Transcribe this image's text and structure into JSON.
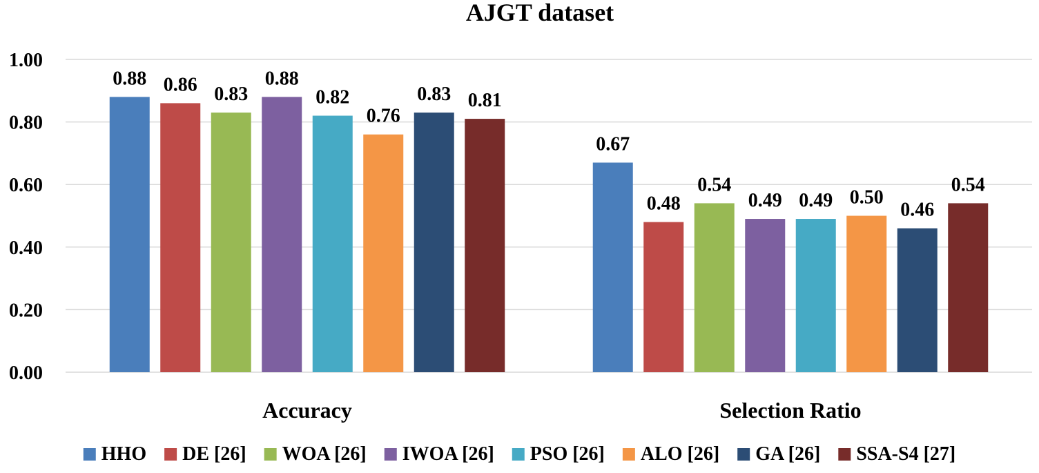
{
  "chart_data": {
    "type": "bar",
    "title": "AJGT dataset",
    "categories": [
      "Accuracy",
      "Selection Ratio"
    ],
    "series": [
      {
        "name": "HHO",
        "color": "#4a7ebb",
        "values": [
          0.88,
          0.67
        ]
      },
      {
        "name": "DE [26]",
        "color": "#be4b48",
        "values": [
          0.86,
          0.48
        ]
      },
      {
        "name": "WOA [26]",
        "color": "#98b954",
        "values": [
          0.83,
          0.54
        ]
      },
      {
        "name": "IWOA [26]",
        "color": "#7d60a0",
        "values": [
          0.88,
          0.49
        ]
      },
      {
        "name": "PSO [26]",
        "color": "#46aac5",
        "values": [
          0.82,
          0.49
        ]
      },
      {
        "name": "ALO [26]",
        "color": "#f49646",
        "values": [
          0.76,
          0.5
        ]
      },
      {
        "name": "GA [26]",
        "color": "#2c4d75",
        "values": [
          0.83,
          0.46
        ]
      },
      {
        "name": "SSA-S4 [27]",
        "color": "#772c2a",
        "values": [
          0.81,
          0.54
        ]
      }
    ],
    "ylim": [
      0,
      1.0
    ],
    "yticks": [
      "0.00",
      "0.20",
      "0.40",
      "0.60",
      "0.80",
      "1.00"
    ],
    "grid": true,
    "legend": "bottom",
    "xlabel": "",
    "ylabel": ""
  }
}
